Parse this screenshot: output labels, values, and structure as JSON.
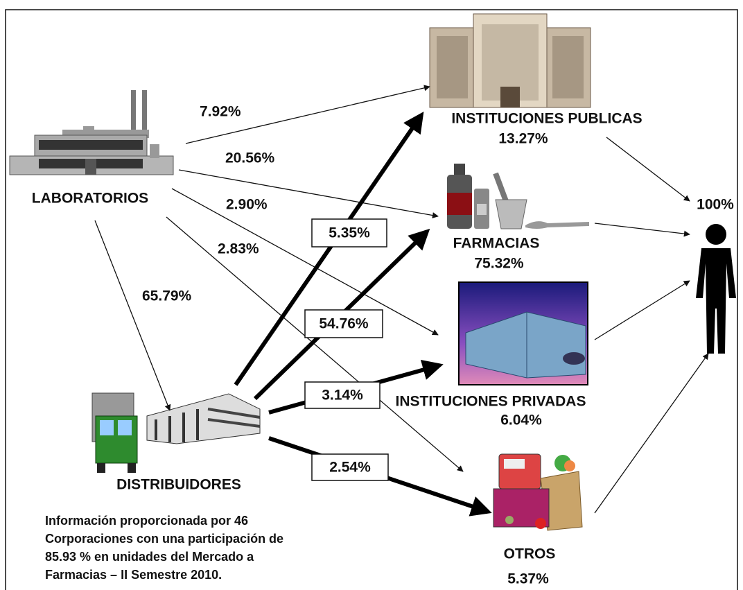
{
  "nodes": [
    {
      "label": "LABORATORIOS"
    },
    {
      "label": "DISTRIBUIDORES"
    },
    {
      "label": "INSTITUCIONES PUBLICAS",
      "share": "13.27%"
    },
    {
      "label": "FARMACIAS",
      "share": "75.32%"
    },
    {
      "label": "INSTITUCIONES PRIVADAS",
      "share": "6.04%"
    },
    {
      "label": "OTROS",
      "share": "5.37%"
    }
  ],
  "consumer": {
    "share": "100%"
  },
  "laboratory_flows": [
    "7.92%",
    "20.56%",
    "2.90%",
    "2.83%",
    "65.79%"
  ],
  "distributor_flows": [
    "5.35%",
    "54.76%",
    "3.14%",
    "2.54%"
  ],
  "note": [
    "Información proporcionada por 46",
    "Corporaciones con una participación de",
    "85.93 % en unidades del Mercado a",
    "Farmacias – II Semestre 2010."
  ]
}
